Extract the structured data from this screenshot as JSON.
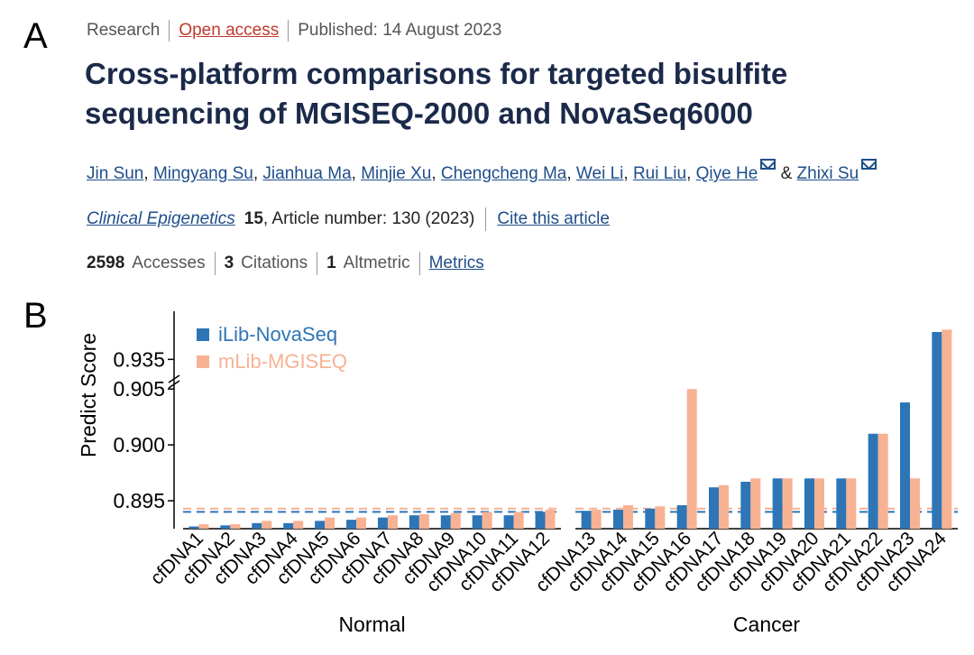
{
  "panels": {
    "a": "A",
    "b": "B"
  },
  "article": {
    "type": "Research",
    "access": "Open access",
    "published": "Published: 14 August 2023",
    "title": "Cross-platform comparisons for targeted bisulfite sequencing of MGISEQ-2000 and NovaSeq6000",
    "authors": [
      "Jin Sun",
      "Mingyang Su",
      "Jianhua Ma",
      "Minjie Xu",
      "Chengcheng Ma",
      "Wei Li",
      "Rui Liu",
      "Qiye He",
      "Zhixi Su"
    ],
    "journal": "Clinical Epigenetics",
    "volume": "15",
    "article_number": ", Article number: 130 (2023)",
    "cite": "Cite this article",
    "accesses_count": "2598",
    "accesses_label": "Accesses",
    "citations_count": "3",
    "citations_label": "Citations",
    "altmetric_count": "1",
    "altmetric_label": "Altmetric",
    "metrics_link": "Metrics"
  },
  "colors": {
    "series1": "#2e75b6",
    "series2": "#f7b293",
    "title": "#1b2a4a",
    "link": "#1f4e8a"
  },
  "chart_data": {
    "type": "bar",
    "ylabel": "Predict Score",
    "xlabel": "",
    "categories": [
      "cfDNA1",
      "cfDNA2",
      "cfDNA3",
      "cfDNA4",
      "cfDNA5",
      "cfDNA6",
      "cfDNA7",
      "cfDNA8",
      "cfDNA9",
      "cfDNA10",
      "cfDNA11",
      "cfDNA12",
      "cfDNA13",
      "cfDNA14",
      "cfDNA15",
      "cfDNA16",
      "cfDNA17",
      "cfDNA18",
      "cfDNA19",
      "cfDNA20",
      "cfDNA21",
      "cfDNA22",
      "cfDNA23",
      "cfDNA24"
    ],
    "groups": [
      {
        "name": "Normal",
        "categories": [
          "cfDNA1",
          "cfDNA2",
          "cfDNA3",
          "cfDNA4",
          "cfDNA5",
          "cfDNA6",
          "cfDNA7",
          "cfDNA8",
          "cfDNA9",
          "cfDNA10",
          "cfDNA11",
          "cfDNA12"
        ]
      },
      {
        "name": "Cancer",
        "categories": [
          "cfDNA13",
          "cfDNA14",
          "cfDNA15",
          "cfDNA16",
          "cfDNA17",
          "cfDNA18",
          "cfDNA19",
          "cfDNA20",
          "cfDNA21",
          "cfDNA22",
          "cfDNA23",
          "cfDNA24"
        ]
      }
    ],
    "series": [
      {
        "name": "iLib-NovaSeq",
        "color": "#2e75b6",
        "values": [
          0.8927,
          0.8928,
          0.893,
          0.893,
          0.8932,
          0.8933,
          0.8935,
          0.8937,
          0.8937,
          0.8937,
          0.8937,
          0.894,
          0.8941,
          0.8942,
          0.8943,
          0.8946,
          0.8962,
          0.8967,
          0.897,
          0.897,
          0.897,
          0.901,
          0.9038,
          0.9385
        ]
      },
      {
        "name": "mLib-MGISEQ",
        "color": "#f7b293",
        "values": [
          0.8929,
          0.8929,
          0.8932,
          0.8932,
          0.8935,
          0.8935,
          0.8937,
          0.8938,
          0.8939,
          0.894,
          0.894,
          0.8942,
          0.8942,
          0.8946,
          0.8945,
          0.905,
          0.8964,
          0.897,
          0.897,
          0.897,
          0.897,
          0.901,
          0.897,
          0.9388
        ]
      }
    ],
    "reference_lines": [
      {
        "series": "iLib-NovaSeq",
        "value": 0.894,
        "style": "dashed"
      },
      {
        "series": "mLib-MGISEQ",
        "value": 0.8943,
        "style": "dashed"
      }
    ],
    "yticks": [
      "0.895",
      "0.900",
      "0.905",
      "0.935"
    ],
    "axis_break": "between 0.905 and 0.935",
    "ylim": [
      0.8925,
      0.94
    ],
    "legend_position": "top-left",
    "grid": false
  }
}
